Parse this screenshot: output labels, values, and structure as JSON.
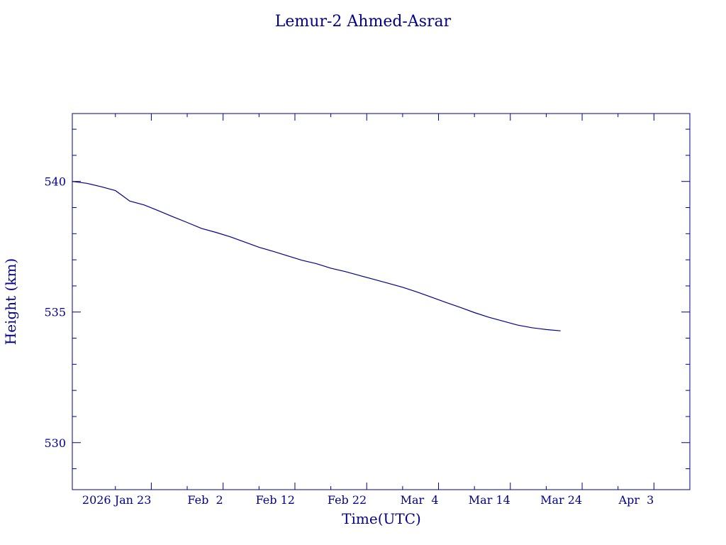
{
  "chart_data": {
    "type": "line",
    "title": "Lemur-2 Ahmed-Asrar",
    "xlabel": "Time(UTC)",
    "ylabel": "Height (km)",
    "xlim": [
      "2026-01-12",
      "2026-04-08"
    ],
    "ylim": [
      528.2,
      542.6
    ],
    "x_tick_labels": [
      "2026 Jan 23",
      "Feb  2",
      "Feb 12",
      "Feb 22",
      "Mar  4",
      "Mar 14",
      "Mar 24",
      "Apr  3"
    ],
    "y_tick_labels": [
      "530",
      "535",
      "540"
    ],
    "grid": false,
    "series": [
      {
        "color": "#00008b",
        "x": [
          "2026-01-12",
          "2026-01-14",
          "2026-01-16",
          "2026-01-18",
          "2026-01-19",
          "2026-01-20",
          "2026-01-22",
          "2026-01-24",
          "2026-01-26",
          "2026-01-28",
          "2026-01-30",
          "2026-02-01",
          "2026-02-03",
          "2026-02-05",
          "2026-02-07",
          "2026-02-09",
          "2026-02-11",
          "2026-02-13",
          "2026-02-15",
          "2026-02-17",
          "2026-02-19",
          "2026-02-21",
          "2026-02-23",
          "2026-02-25",
          "2026-02-27",
          "2026-03-01",
          "2026-03-03",
          "2026-03-05",
          "2026-03-07",
          "2026-03-09",
          "2026-03-11",
          "2026-03-13",
          "2026-03-15",
          "2026-03-17",
          "2026-03-19",
          "2026-03-21"
        ],
        "values": [
          540.0,
          539.93,
          539.8,
          539.65,
          539.45,
          539.25,
          539.1,
          538.88,
          538.65,
          538.43,
          538.2,
          538.05,
          537.88,
          537.68,
          537.48,
          537.32,
          537.15,
          536.98,
          536.85,
          536.68,
          536.55,
          536.4,
          536.25,
          536.1,
          535.95,
          535.77,
          535.57,
          535.37,
          535.18,
          534.98,
          534.8,
          534.65,
          534.5,
          534.4,
          534.33,
          534.28
        ]
      }
    ]
  }
}
